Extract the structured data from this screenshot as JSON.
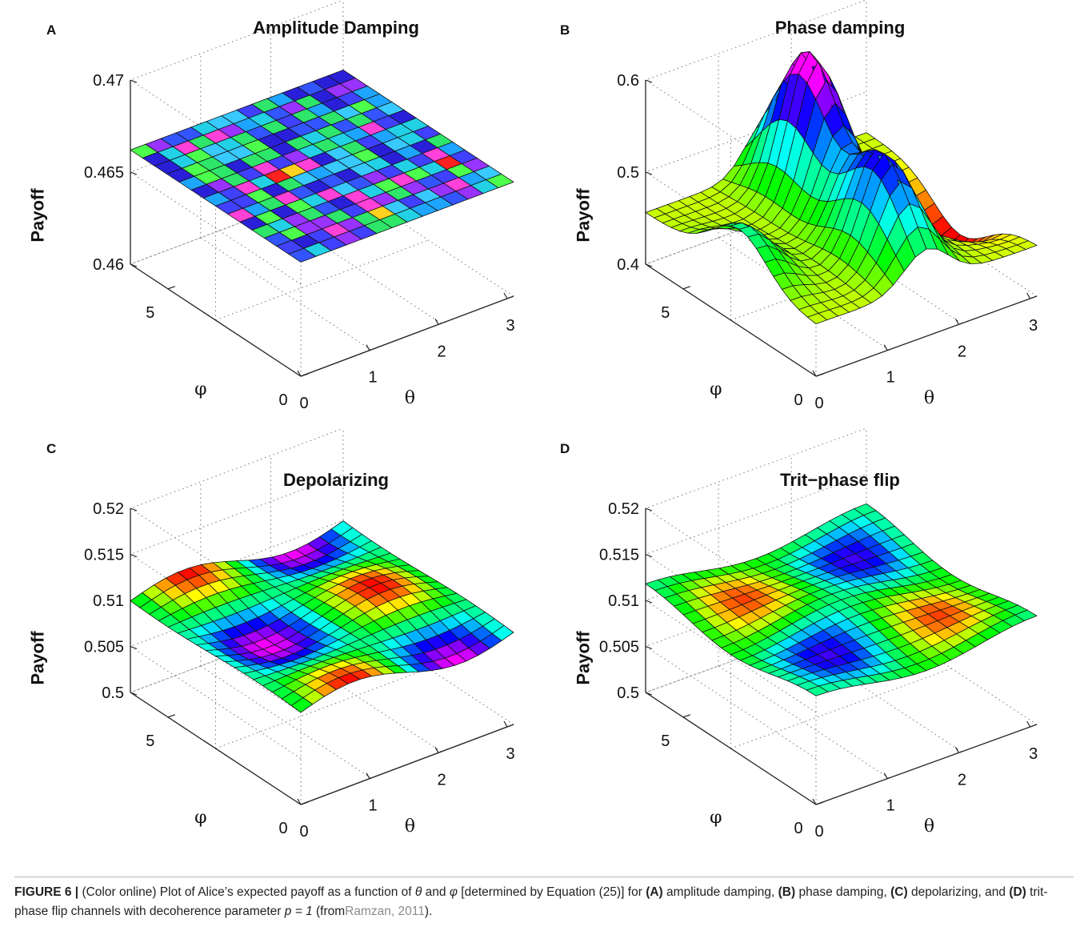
{
  "caption": {
    "label": "FIGURE 6 |",
    "p1": "(Color online) Plot of Alice’s expected payoff as a function of",
    "theta": "θ",
    "and": "and",
    "phi": "φ",
    "p2": "[determined by Equation (25)] for",
    "A": "(A)",
    "a_text": "amplitude damping,",
    "B": "(B)",
    "b_text": "phase damping,",
    "C": "(C)",
    "c_text": "depolarizing, and",
    "D": "(D)",
    "d_text": "trit-phase flip channels with decoherence parameter",
    "param": "p = 1",
    "from": "(from",
    "cite": "Ramzan, 2011",
    "end": ")."
  },
  "chart_data": [
    {
      "type": "surface",
      "panel": "A",
      "title": "Amplitude Damping",
      "zlabel": "Payoff",
      "xlabel": "θ",
      "ylabel": "φ",
      "zlim": [
        0.46,
        0.47
      ],
      "zticks": [
        "0.46",
        "0.465",
        "0.47"
      ],
      "xticks": [
        "0",
        "1",
        "2",
        "3"
      ],
      "yticks": [
        "0",
        "5"
      ],
      "surface_level": 0.4662,
      "grid": true
    },
    {
      "type": "surface",
      "panel": "B",
      "title": "Phase damping",
      "zlabel": "Payoff",
      "xlabel": "θ",
      "ylabel": "φ",
      "zlim": [
        0.4,
        0.65
      ],
      "zticks": [
        "0.4",
        "0.5",
        "0.6"
      ],
      "xticks": [
        "0",
        "1",
        "2",
        "3"
      ],
      "yticks": [
        "0",
        "5"
      ],
      "z_range_shown": [
        0.35,
        0.65
      ],
      "grid": true
    },
    {
      "type": "surface",
      "panel": "C",
      "title": "Depolarizing",
      "zlabel": "Payoff",
      "xlabel": "θ",
      "ylabel": "φ",
      "zlim": [
        0.5,
        0.52
      ],
      "zticks": [
        "0.5",
        "0.505",
        "0.51",
        "0.515",
        "0.52"
      ],
      "xticks": [
        "0",
        "1",
        "2",
        "3"
      ],
      "yticks": [
        "0",
        "5"
      ],
      "surface_level": 0.51,
      "grid": true
    },
    {
      "type": "surface",
      "panel": "D",
      "title": "Trit−phase flip",
      "zlabel": "Payoff",
      "xlabel": "θ",
      "ylabel": "φ",
      "zlim": [
        0.5,
        0.52
      ],
      "zticks": [
        "0.5",
        "0.505",
        "0.51",
        "0.515",
        "0.52"
      ],
      "xticks": [
        "0",
        "1",
        "2",
        "3"
      ],
      "yticks": [
        "0",
        "5"
      ],
      "surface_level": 0.511,
      "grid": true
    }
  ]
}
